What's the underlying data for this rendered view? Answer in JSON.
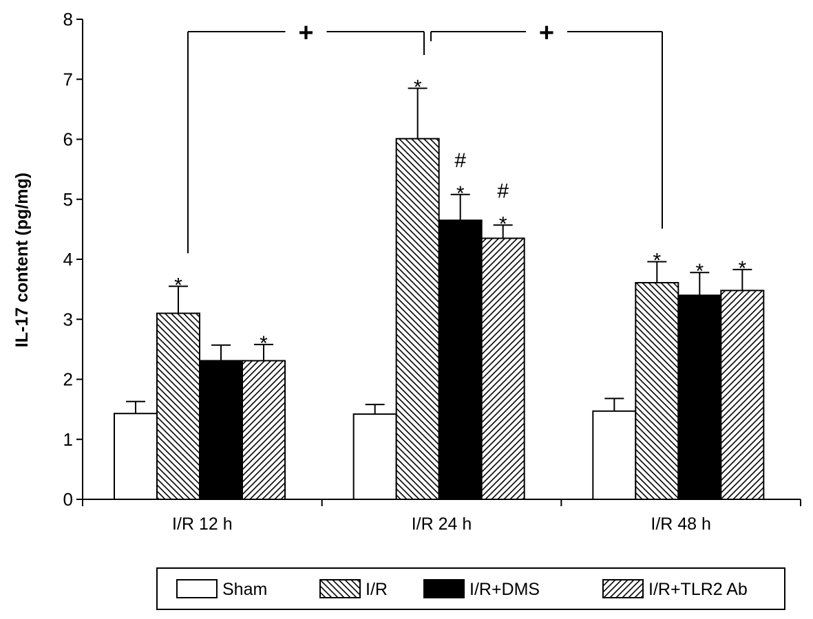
{
  "chart_data": {
    "type": "bar",
    "ylabel": "IL-17 content (pg/mg)",
    "ylim": [
      0,
      8
    ],
    "yticks": [
      0,
      1,
      2,
      3,
      4,
      5,
      6,
      7,
      8
    ],
    "categories": [
      "I/R 12 h",
      "I/R 24 h",
      "I/R 48 h"
    ],
    "legend_position": "bottom-right",
    "grid": false,
    "series": [
      {
        "name": "Sham",
        "pattern": "white",
        "values": [
          1.43,
          1.42,
          1.47
        ],
        "errors": [
          0.2,
          0.16,
          0.21
        ],
        "annotations": [
          "",
          "",
          ""
        ]
      },
      {
        "name": "I/R",
        "pattern": "backslash-hatch",
        "values": [
          3.1,
          6.01,
          3.61
        ],
        "errors": [
          0.45,
          0.84,
          0.35
        ],
        "annotations": [
          "*",
          "*",
          "*"
        ]
      },
      {
        "name": "I/R+DMS",
        "pattern": "black",
        "values": [
          2.31,
          4.65,
          3.4
        ],
        "errors": [
          0.26,
          0.43,
          0.38
        ],
        "annotations": [
          "",
          "#\n*",
          "*"
        ]
      },
      {
        "name": "I/R+TLR2 Ab",
        "pattern": "slash-hatch",
        "values": [
          2.31,
          4.35,
          3.48
        ],
        "errors": [
          0.27,
          0.22,
          0.35
        ],
        "annotations": [
          "*",
          "#\n*",
          "*"
        ]
      }
    ],
    "comparisons": [
      {
        "from": "I/R 12 h",
        "to": "I/R 24 h",
        "symbol": "+"
      },
      {
        "from": "I/R 24 h",
        "to": "I/R 48 h",
        "symbol": "+"
      }
    ]
  }
}
